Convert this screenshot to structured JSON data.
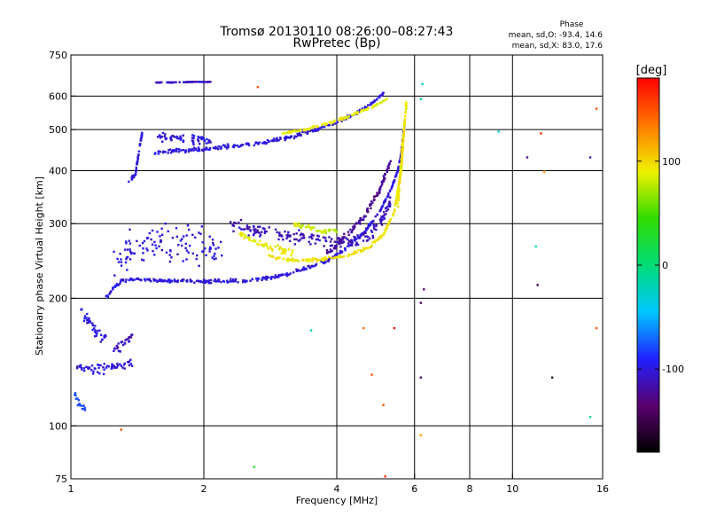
{
  "chart_data": {
    "type": "scatter",
    "title": "Tromsø 20130110 08:26:00–08:27:43",
    "subtitle": "RwPretec (Bp)",
    "xlabel": "Frequency [MHz]",
    "ylabel": "Stationary phase Virtual Height [km]",
    "x_scale": "log",
    "y_scale": "log",
    "xlim": [
      1,
      16
    ],
    "ylim": [
      75,
      750
    ],
    "x_ticks": [
      1,
      2,
      4,
      6,
      8,
      10,
      16
    ],
    "x_tick_labels": [
      "1",
      "2",
      "4",
      "6",
      "8",
      "10",
      "16"
    ],
    "y_ticks": [
      75,
      100,
      200,
      300,
      400,
      500,
      600,
      750
    ],
    "y_tick_labels": [
      "75",
      "100",
      "200",
      "300",
      "400",
      "500",
      "600",
      "750"
    ],
    "x_gridlines": [
      2,
      4,
      6,
      8,
      10
    ],
    "y_gridlines": [
      100,
      200,
      300,
      400,
      500,
      600
    ],
    "grid": true,
    "colorbar": {
      "label": "[deg]",
      "range": [
        -180,
        180
      ],
      "ticks": [
        100,
        0,
        -100
      ],
      "tick_labels": [
        "100",
        "0",
        "-100"
      ],
      "stops": [
        "#000000",
        "#5a006e",
        "#2020ff",
        "#00c8ff",
        "#00dc78",
        "#32dc00",
        "#f0f000",
        "#ff7800",
        "#ff0000"
      ]
    },
    "stats": {
      "heading": "Phase",
      "line_o": "mean, sd,O: -93.4, 14.6",
      "line_x": "mean, sd,X:  83.0, 17.6"
    },
    "series": [
      {
        "mode": "O",
        "traces": [
          {
            "kind": "band",
            "f": [
              1.02,
              1.06,
              1.1,
              1.2,
              1.3,
              1.38
            ],
            "h": [
              138,
              137,
              136,
              137,
              140,
              142
            ],
            "spread": 5,
            "phase": -100
          },
          {
            "kind": "band",
            "f": [
              1.02,
              1.05,
              1.08
            ],
            "h": [
              118,
              112,
              110
            ],
            "spread": 4,
            "phase": -80
          },
          {
            "kind": "band",
            "f": [
              1.05,
              1.1,
              1.15,
              1.2
            ],
            "h": [
              188,
              175,
              165,
              160
            ],
            "spread": 8,
            "phase": -100
          },
          {
            "kind": "band",
            "f": [
              1.25,
              1.3,
              1.35,
              1.38
            ],
            "h": [
              150,
              155,
              160,
              165
            ],
            "spread": 6,
            "phase": -110
          },
          {
            "kind": "band",
            "f": [
              1.2,
              1.25,
              1.3,
              1.4,
              1.6,
              2.0,
              2.5,
              3.0,
              3.4,
              3.8,
              4.2,
              4.6,
              5.0,
              5.3,
              5.5,
              5.6,
              5.65,
              5.7
            ],
            "h": [
              200,
              212,
              220,
              222,
              220,
              219,
              220,
              226,
              235,
              245,
              262,
              285,
              320,
              360,
              400,
              440,
              480,
              520
            ],
            "spread": 3,
            "phase": -100
          },
          {
            "kind": "band",
            "f": [
              1.25,
              1.4,
              1.6,
              1.8,
              2.0,
              2.2
            ],
            "h": [
              240,
              260,
              270,
              268,
              262,
              258
            ],
            "spread": 40,
            "phase": -100
          },
          {
            "kind": "band",
            "f": [
              2.3,
              2.6,
              3.0,
              3.5,
              4.0,
              4.4,
              4.8,
              5.1,
              5.3
            ],
            "h": [
              300,
              290,
              282,
              275,
              270,
              272,
              285,
              310,
              340
            ],
            "spread": 14,
            "phase": -110
          },
          {
            "kind": "band",
            "f": [
              3.8,
              4.2,
              4.6,
              5.0,
              5.3
            ],
            "h": [
              255,
              280,
              310,
              360,
              420
            ],
            "spread": 8,
            "phase": -120
          },
          {
            "kind": "band",
            "f": [
              1.55,
              1.7,
              1.9,
              2.1,
              2.4,
              2.8,
              3.2,
              3.6,
              4.0,
              4.4,
              4.8,
              5.1
            ],
            "h": [
              440,
              445,
              448,
              452,
              458,
              468,
              482,
              500,
              520,
              545,
              575,
              610
            ],
            "spread": 7,
            "phase": -100
          },
          {
            "kind": "band",
            "f": [
              1.55,
              1.7,
              1.9,
              2.1
            ],
            "h": [
              480,
              478,
              475,
              470
            ],
            "spread": 16,
            "phase": -100
          },
          {
            "kind": "band",
            "f": [
              1.55,
              1.7,
              1.9,
              2.1
            ],
            "h": [
              646,
              646,
              648,
              648
            ],
            "spread": 1,
            "phase": -110
          },
          {
            "kind": "band",
            "f": [
              1.35,
              1.4,
              1.45
            ],
            "h": [
              378,
              392,
              490
            ],
            "spread": 6,
            "phase": -100
          }
        ]
      },
      {
        "mode": "X",
        "traces": [
          {
            "kind": "band",
            "f": [
              2.8,
              3.0,
              3.3,
              3.7,
              4.2,
              4.7,
              5.1,
              5.4,
              5.6,
              5.7
            ],
            "h": [
              253,
              247,
              245,
              247,
              252,
              262,
              282,
              320,
              400,
              520
            ],
            "spread": 3,
            "phase": 95
          },
          {
            "kind": "band",
            "f": [
              2.4,
              2.6,
              2.9,
              3.2
            ],
            "h": [
              285,
              272,
              262,
              256
            ],
            "spread": 6,
            "phase": 90
          },
          {
            "kind": "band",
            "f": [
              3.0,
              3.4,
              3.9,
              4.4,
              4.9,
              5.2
            ],
            "h": [
              490,
              500,
              520,
              545,
              570,
              590
            ],
            "spread": 5,
            "phase": 90
          },
          {
            "kind": "band",
            "f": [
              5.5,
              5.6,
              5.7,
              5.75
            ],
            "h": [
              330,
              420,
              520,
              580
            ],
            "spread": 22,
            "phase": 95
          },
          {
            "kind": "band",
            "f": [
              3.2,
              3.6,
              4.0
            ],
            "h": [
              300,
              290,
              288
            ],
            "spread": 6,
            "phase": 80
          }
        ]
      },
      {
        "mode": "scattered",
        "points": [
          {
            "f": 5.4,
            "h": 170,
            "phase": 170
          },
          {
            "f": 6.2,
            "h": 195,
            "phase": -140
          },
          {
            "f": 6.2,
            "h": 130,
            "phase": -140
          },
          {
            "f": 6.2,
            "h": 590,
            "phase": -10
          },
          {
            "f": 6.25,
            "h": 640,
            "phase": -20
          },
          {
            "f": 6.2,
            "h": 95,
            "phase": 120
          },
          {
            "f": 4.8,
            "h": 132,
            "phase": 150
          },
          {
            "f": 5.1,
            "h": 112,
            "phase": 150
          },
          {
            "f": 4.6,
            "h": 170,
            "phase": 140
          },
          {
            "f": 3.5,
            "h": 168,
            "phase": -20
          },
          {
            "f": 2.6,
            "h": 80,
            "phase": 30
          },
          {
            "f": 5.15,
            "h": 76,
            "phase": 160
          },
          {
            "f": 9.3,
            "h": 495,
            "phase": -30
          },
          {
            "f": 11.6,
            "h": 490,
            "phase": 160
          },
          {
            "f": 11.3,
            "h": 265,
            "phase": -20
          },
          {
            "f": 11.4,
            "h": 215,
            "phase": -150
          },
          {
            "f": 11.8,
            "h": 398,
            "phase": 130
          },
          {
            "f": 12.3,
            "h": 130,
            "phase": -160
          },
          {
            "f": 15.0,
            "h": 430,
            "phase": -110
          },
          {
            "f": 15.0,
            "h": 105,
            "phase": -10
          },
          {
            "f": 15.5,
            "h": 170,
            "phase": 150
          },
          {
            "f": 15.5,
            "h": 560,
            "phase": 150
          },
          {
            "f": 10.8,
            "h": 430,
            "phase": -130
          },
          {
            "f": 2.65,
            "h": 630,
            "phase": 150
          },
          {
            "f": 6.3,
            "h": 210,
            "phase": -130
          },
          {
            "f": 1.3,
            "h": 98,
            "phase": 150
          }
        ]
      }
    ]
  }
}
